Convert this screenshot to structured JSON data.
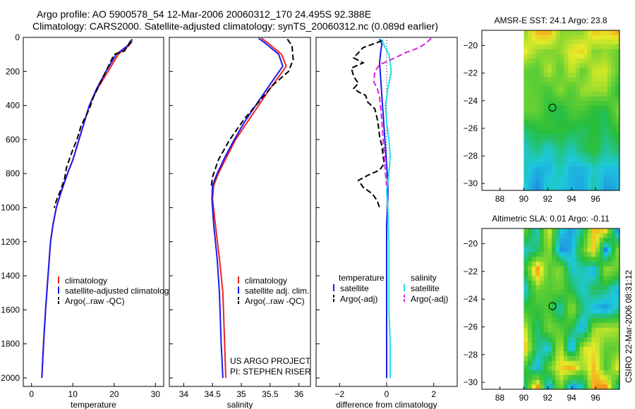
{
  "header": {
    "line1": "Argo profile: AO 5900578_54 12-Mar-2006 20060312_170 24.495S 92.388E",
    "line2": "Climatology: CARS2000. Satellite-adjusted climatology: synTS_20060312.nc (0.089d earlier)"
  },
  "footer": {
    "project": "US ARGO PROJECT",
    "pi": "PI: STEPHEN RISER",
    "credit": "CSIRO 22-Mar-2006 08:31:12"
  },
  "colors": {
    "climatology": "#ee2222",
    "satellite": "#1a1aee",
    "argo": "#000000",
    "sal_satellite": "#22ddee",
    "sal_argo": "#dd22dd"
  },
  "chart_data": [
    {
      "type": "line",
      "id": "temperature",
      "xlabel": "temperature",
      "xlim": [
        -2,
        32
      ],
      "ylim": [
        2050,
        0
      ],
      "xticks": [
        0,
        10,
        20,
        30
      ],
      "yticks": [
        0,
        200,
        400,
        600,
        800,
        1000,
        1200,
        1400,
        1600,
        1800,
        2000
      ],
      "legend": [
        "climatology",
        "satellite-adjusted climatology",
        "Argo(..raw -QC)"
      ],
      "series": [
        {
          "name": "climatology",
          "color": "#ee2222",
          "dash": "",
          "x": [
            24.3,
            24.2,
            23.5,
            21,
            18.5,
            16,
            14,
            13,
            12,
            11,
            10,
            9,
            8,
            7,
            6,
            5.2,
            4.6,
            4,
            3.4,
            2.9,
            2.5
          ],
          "y": [
            10,
            30,
            50,
            100,
            200,
            300,
            400,
            480,
            560,
            640,
            720,
            780,
            850,
            920,
            1000,
            1100,
            1200,
            1400,
            1600,
            1800,
            2000
          ]
        },
        {
          "name": "satellite",
          "color": "#1a1aee",
          "dash": "",
          "x": [
            24.3,
            24.1,
            23.2,
            20.5,
            18,
            15.8,
            14,
            13,
            12,
            11,
            10,
            9,
            8,
            7,
            6,
            5.2,
            4.6,
            4,
            3.4,
            2.9,
            2.5
          ],
          "y": [
            10,
            30,
            50,
            100,
            200,
            300,
            400,
            480,
            560,
            640,
            720,
            780,
            850,
            920,
            1000,
            1100,
            1200,
            1400,
            1600,
            1800,
            2000
          ]
        },
        {
          "name": "argo",
          "color": "#000000",
          "dash": "8,4",
          "x": [
            24,
            23.5,
            22.5,
            20,
            19,
            17,
            15,
            14,
            12,
            11,
            10,
            8.5,
            8,
            7,
            6,
            5.5
          ],
          "y": [
            20,
            40,
            80,
            100,
            150,
            250,
            350,
            420,
            520,
            600,
            660,
            760,
            830,
            900,
            960,
            1000
          ]
        }
      ]
    },
    {
      "type": "line",
      "id": "salinity",
      "xlabel": "salinity",
      "xlim": [
        33.75,
        36.2
      ],
      "ylim": [
        2050,
        0
      ],
      "xticks": [
        34,
        34.5,
        35,
        35.5,
        36
      ],
      "legend": [
        "climatology",
        "satellite adj. clim.",
        "Argo(..raw -QC)"
      ],
      "series": [
        {
          "name": "climatology",
          "color": "#ee2222",
          "dash": "",
          "x": [
            35.35,
            35.45,
            35.7,
            35.78,
            35.5,
            35.3,
            35.1,
            34.9,
            34.75,
            34.6,
            34.52,
            34.5,
            34.55,
            34.62,
            34.68,
            34.71,
            34.73
          ],
          "y": [
            5,
            30,
            100,
            170,
            300,
            400,
            500,
            600,
            700,
            800,
            870,
            950,
            1100,
            1300,
            1500,
            1800,
            2000
          ]
        },
        {
          "name": "satellite",
          "color": "#1a1aee",
          "dash": "",
          "x": [
            35.3,
            35.4,
            35.65,
            35.72,
            35.45,
            35.25,
            35.05,
            34.88,
            34.72,
            34.58,
            34.5,
            34.49,
            34.52,
            34.58,
            34.62,
            34.65,
            34.68
          ],
          "y": [
            5,
            30,
            100,
            170,
            300,
            400,
            500,
            600,
            700,
            800,
            870,
            950,
            1100,
            1300,
            1500,
            1800,
            2000
          ]
        },
        {
          "name": "argo",
          "color": "#000000",
          "dash": "8,4",
          "x": [
            35.8,
            35.88,
            35.9,
            35.82,
            35.55,
            35.3,
            35.05,
            34.8,
            34.6,
            34.5,
            34.48
          ],
          "y": [
            10,
            50,
            130,
            200,
            280,
            380,
            480,
            600,
            720,
            820,
            870
          ]
        }
      ]
    },
    {
      "type": "line",
      "id": "difference",
      "xlabel": "difference from climatology",
      "xlim": [
        -3,
        3
      ],
      "ylim": [
        2050,
        0
      ],
      "xticks": [
        -2,
        0,
        2
      ],
      "legend_titles": [
        "temperature",
        "salinity"
      ],
      "legend": [
        "satellite",
        "Argo(-adj)",
        "satellite",
        "Argo(-adj)"
      ],
      "series": [
        {
          "name": "temperature satellite",
          "color": "#1a1aee",
          "dash": "",
          "x": [
            -0.3,
            -0.2,
            -0.25,
            -0.3,
            -0.25,
            -0.2,
            -0.15,
            -0.1,
            -0.05,
            0,
            0.05,
            0.05,
            0,
            0,
            0,
            0,
            0,
            0
          ],
          "y": [
            10,
            40,
            80,
            150,
            250,
            350,
            450,
            550,
            650,
            750,
            850,
            950,
            1100,
            1300,
            1500,
            1700,
            1900,
            2000
          ]
        },
        {
          "name": "salinity satellite",
          "color": "#22ddee",
          "dash": "",
          "x": [
            -0.2,
            -0.1,
            0.1,
            0.2,
            0.05,
            -0.05,
            0,
            0.1,
            0.15,
            0.1,
            0,
            0.05,
            0.1,
            0.1,
            0.1,
            0.15,
            0.15
          ],
          "y": [
            10,
            50,
            100,
            200,
            300,
            400,
            500,
            600,
            700,
            800,
            900,
            1000,
            1200,
            1400,
            1600,
            1800,
            2000
          ]
        },
        {
          "name": "temperature argo",
          "color": "#000000",
          "dash": "8,4",
          "x": [
            -0.2,
            -0.6,
            -1.0,
            -1.2,
            -1.4,
            -1.0,
            -1.5,
            -1.4,
            -1.2,
            -1.4,
            -1.2,
            -0.9,
            -0.8,
            -0.5,
            -0.4,
            -0.35,
            -0.3,
            -0.2,
            -0.15,
            -0.1,
            -0.3,
            -0.8,
            -1.2,
            -1.0,
            -0.6,
            -0.4,
            -0.3
          ],
          "y": [
            20,
            40,
            60,
            90,
            120,
            150,
            180,
            230,
            270,
            300,
            320,
            340,
            380,
            420,
            480,
            520,
            580,
            640,
            700,
            740,
            780,
            810,
            840,
            880,
            920,
            960,
            1000
          ]
        },
        {
          "name": "salinity argo",
          "color": "#dd22dd",
          "dash": "8,4",
          "x": [
            1.9,
            1.7,
            1.5,
            1.2,
            0.8,
            0.5,
            0.2,
            -0.3,
            -0.5,
            -0.55,
            -0.4,
            -0.3,
            -0.25,
            -0.2,
            -0.15,
            -0.1,
            -0.05,
            0
          ],
          "y": [
            5,
            30,
            50,
            70,
            90,
            110,
            130,
            160,
            200,
            260,
            300,
            350,
            420,
            500,
            600,
            700,
            800,
            870
          ]
        }
      ]
    },
    {
      "type": "heatmap",
      "id": "sst-map",
      "title": "AMSR-E SST: 24.1 Argo: 23.8",
      "xlim": [
        86.5,
        98
      ],
      "ylim": [
        -30.5,
        -18.9
      ],
      "xticks": [
        88,
        90,
        92,
        94,
        96
      ],
      "yticks": [
        -20,
        -22,
        -24,
        -26,
        -28,
        -30
      ],
      "data_xrange": [
        90,
        98
      ],
      "data_yrange": [
        -30.5,
        -18.9
      ],
      "marker": {
        "x": 92.4,
        "y": -24.5
      }
    },
    {
      "type": "heatmap",
      "id": "sla-map",
      "title": "Altimetric SLA: 0.01 Argo: -0.11",
      "xlim": [
        86.5,
        98
      ],
      "ylim": [
        -30.5,
        -18.9
      ],
      "xticks": [
        88,
        90,
        92,
        94,
        96
      ],
      "yticks": [
        -20,
        -22,
        -24,
        -26,
        -28,
        -30
      ],
      "data_xrange": [
        90,
        98
      ],
      "data_yrange": [
        -30.5,
        -18.9
      ],
      "marker": {
        "x": 92.4,
        "y": -24.5
      }
    }
  ]
}
